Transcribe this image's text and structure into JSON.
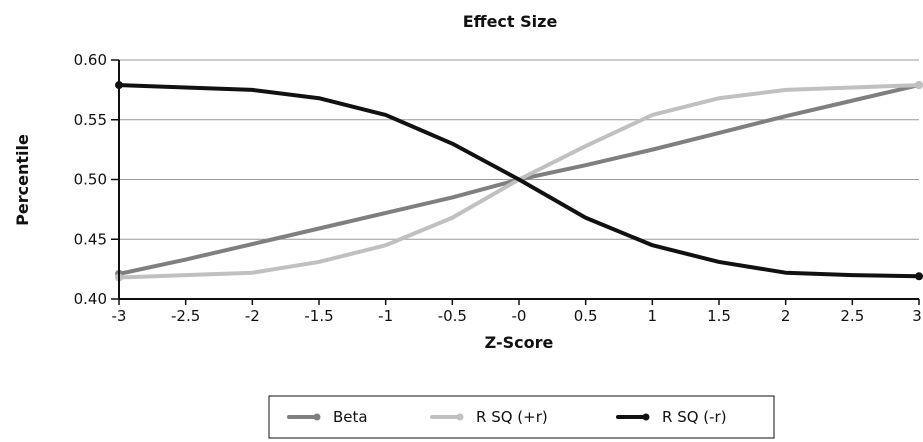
{
  "chart_data": {
    "type": "line",
    "title": "Effect Size",
    "xlabel": "Z-Score",
    "ylabel": "Percentile",
    "x": [
      -3,
      -2.5,
      -2,
      -1.5,
      -1,
      -0.5,
      0,
      0.5,
      1,
      1.5,
      2,
      2.5,
      3
    ],
    "x_tick_labels": [
      "-3",
      "-2.5",
      "-2",
      "-1.5",
      "-1",
      "-0.5",
      "-0",
      "0.5",
      "1",
      "1.5",
      "2",
      "2.5",
      "3"
    ],
    "y_tick_labels": [
      "0.40",
      "0.45",
      "0.50",
      "0.55",
      "0.60"
    ],
    "y_ticks": [
      0.4,
      0.45,
      0.5,
      0.55,
      0.6
    ],
    "ylim": [
      0.4,
      0.6
    ],
    "grid": "horizontal",
    "legend_position": "bottom",
    "series": [
      {
        "name": "Beta",
        "color": "#7f7f7f",
        "values": [
          0.421,
          0.433,
          0.446,
          0.459,
          0.472,
          0.485,
          0.5,
          0.512,
          0.525,
          0.539,
          0.553,
          0.566,
          0.579
        ]
      },
      {
        "name": "R SQ (+r)",
        "color": "#c0c0c0",
        "values": [
          0.418,
          0.42,
          0.422,
          0.431,
          0.445,
          0.468,
          0.5,
          0.528,
          0.554,
          0.568,
          0.575,
          0.577,
          0.579
        ]
      },
      {
        "name": "R SQ (-r)",
        "color": "#111111",
        "values": [
          0.579,
          0.577,
          0.575,
          0.568,
          0.554,
          0.53,
          0.5,
          0.468,
          0.445,
          0.431,
          0.422,
          0.42,
          0.419
        ]
      }
    ]
  }
}
